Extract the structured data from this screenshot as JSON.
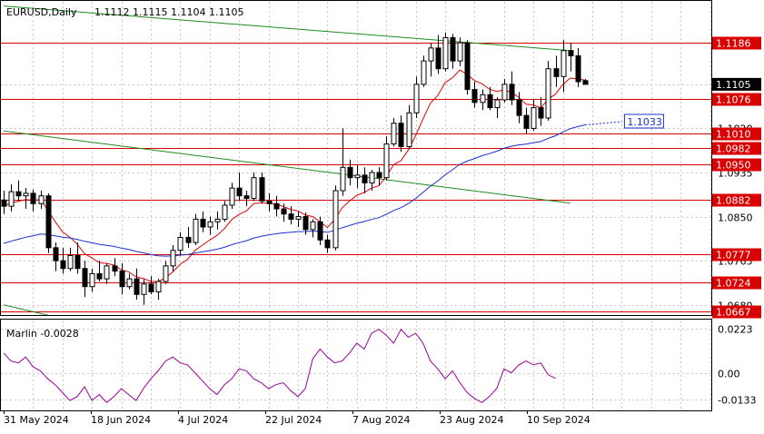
{
  "header": {
    "symbol": "EURUSD,Daily",
    "ohlc": "1.1112 1.1115 1.1104 1.1105"
  },
  "indicator": {
    "label": "Marlin -0.0028"
  },
  "colors": {
    "background": "#ffffff",
    "grid": "#c8c8c8",
    "candle": "#000000",
    "level_line": "#d80000",
    "trend_line": "#1f8a1f",
    "ma_fast": "#e00000",
    "ma_slow": "#1a2fd0",
    "oscillator": "#990099",
    "current_price_bg": "#000000",
    "ma_label_border": "#1a2fd0"
  },
  "chart_data": {
    "type": "candlestick",
    "symbol": "EURUSD",
    "timeframe": "Daily",
    "last_ohlc": {
      "open": 1.1112,
      "high": 1.1115,
      "low": 1.1104,
      "close": 1.1105
    },
    "price_axis": {
      "range": [
        1.0662,
        1.1222
      ],
      "ticks": [
        1.1105,
        1.102,
        1.0935,
        1.085,
        1.0765,
        1.068
      ]
    },
    "time_axis": {
      "labels": [
        "31 May 2024",
        "18 Jun 2024",
        "4 Jul 2024",
        "22 Jul 2024",
        "7 Aug 2024",
        "23 Aug 2024",
        "10 Sep 2024"
      ]
    },
    "grid": true,
    "current_price": 1.1105,
    "horizontal_levels": [
      1.1186,
      1.1076,
      1.101,
      1.0982,
      1.095,
      1.0882,
      1.0777,
      1.0724,
      1.0667
    ],
    "ma_slow_label": 1.1033,
    "trend_lines": [
      {
        "name": "upper",
        "points": [
          [
            0,
            1.1256
          ],
          [
            77,
            1.117
          ]
        ]
      },
      {
        "name": "lower",
        "points": [
          [
            0,
            1.1015
          ],
          [
            77,
            1.0876
          ]
        ]
      },
      {
        "name": "bottom",
        "points": [
          [
            0,
            1.068
          ],
          [
            6,
            1.066
          ]
        ]
      }
    ],
    "candles": [
      [
        1.0882,
        1.09,
        1.0855,
        1.087
      ],
      [
        1.087,
        1.0912,
        1.086,
        1.0898
      ],
      [
        1.0898,
        1.092,
        1.088,
        1.089
      ],
      [
        1.089,
        1.0905,
        1.0865,
        1.0895
      ],
      [
        1.0895,
        1.0902,
        1.086,
        1.0875
      ],
      [
        1.0875,
        1.09,
        1.0865,
        1.089
      ],
      [
        1.089,
        1.0895,
        1.078,
        1.079
      ],
      [
        1.079,
        1.08,
        1.0745,
        1.0765
      ],
      [
        1.0765,
        1.079,
        1.074,
        1.075
      ],
      [
        1.075,
        1.079,
        1.0745,
        1.0775
      ],
      [
        1.0775,
        1.08,
        1.074,
        1.075
      ],
      [
        1.075,
        1.0765,
        1.0695,
        1.0715
      ],
      [
        1.0715,
        1.075,
        1.0705,
        1.074
      ],
      [
        1.074,
        1.0765,
        1.0725,
        1.073
      ],
      [
        1.073,
        1.076,
        1.072,
        1.0755
      ],
      [
        1.0755,
        1.077,
        1.0735,
        1.0745
      ],
      [
        1.0745,
        1.076,
        1.07,
        1.0715
      ],
      [
        1.0715,
        1.074,
        1.071,
        1.073
      ],
      [
        1.073,
        1.075,
        1.069,
        1.07
      ],
      [
        1.07,
        1.073,
        1.068,
        1.072
      ],
      [
        1.072,
        1.0735,
        1.07,
        1.0705
      ],
      [
        1.0705,
        1.073,
        1.069,
        1.0725
      ],
      [
        1.0725,
        1.0765,
        1.072,
        1.0755
      ],
      [
        1.0755,
        1.0795,
        1.0745,
        1.0785
      ],
      [
        1.0785,
        1.082,
        1.0775,
        1.081
      ],
      [
        1.081,
        1.083,
        1.079,
        1.08
      ],
      [
        1.08,
        1.0855,
        1.0795,
        1.0845
      ],
      [
        1.0845,
        1.086,
        1.082,
        1.083
      ],
      [
        1.083,
        1.085,
        1.0815,
        1.084
      ],
      [
        1.084,
        1.086,
        1.0825,
        1.0845
      ],
      [
        1.0845,
        1.088,
        1.084,
        1.0872
      ],
      [
        1.0872,
        1.0915,
        1.0865,
        1.0905
      ],
      [
        1.0905,
        1.0935,
        1.088,
        1.089
      ],
      [
        1.089,
        1.09,
        1.087,
        1.0885
      ],
      [
        1.0885,
        1.0935,
        1.088,
        1.0925
      ],
      [
        1.0925,
        1.0935,
        1.0875,
        1.088
      ],
      [
        1.088,
        1.0895,
        1.086,
        1.0875
      ],
      [
        1.0875,
        1.089,
        1.085,
        1.0865
      ],
      [
        1.0865,
        1.0875,
        1.084,
        1.0855
      ],
      [
        1.0855,
        1.087,
        1.0835,
        1.0845
      ],
      [
        1.0845,
        1.086,
        1.083,
        1.085
      ],
      [
        1.085,
        1.0858,
        1.0815,
        1.0825
      ],
      [
        1.0825,
        1.0845,
        1.081,
        1.084
      ],
      [
        1.084,
        1.085,
        1.0795,
        1.0805
      ],
      [
        1.0805,
        1.0815,
        1.078,
        1.079
      ],
      [
        1.079,
        1.091,
        1.0785,
        1.09
      ],
      [
        1.09,
        1.102,
        1.089,
        1.0945
      ],
      [
        1.0945,
        1.096,
        1.091,
        1.0925
      ],
      [
        1.0925,
        1.095,
        1.0905,
        1.093
      ],
      [
        1.093,
        1.0945,
        1.0895,
        1.0915
      ],
      [
        1.0915,
        1.094,
        1.09,
        1.0935
      ],
      [
        1.0935,
        1.0945,
        1.091,
        1.0925
      ],
      [
        1.0925,
        1.1005,
        1.092,
        1.099
      ],
      [
        1.099,
        1.104,
        1.0985,
        1.103
      ],
      [
        1.103,
        1.1045,
        1.0975,
        1.0985
      ],
      [
        1.0985,
        1.1065,
        1.098,
        1.105
      ],
      [
        1.105,
        1.112,
        1.104,
        1.1105
      ],
      [
        1.1105,
        1.116,
        1.11,
        1.115
      ],
      [
        1.115,
        1.1185,
        1.112,
        1.1175
      ],
      [
        1.1175,
        1.12,
        1.1125,
        1.1135
      ],
      [
        1.1135,
        1.1205,
        1.113,
        1.1195
      ],
      [
        1.1195,
        1.1202,
        1.1135,
        1.115
      ],
      [
        1.115,
        1.1195,
        1.114,
        1.1185
      ],
      [
        1.1185,
        1.119,
        1.1085,
        1.1095
      ],
      [
        1.1095,
        1.111,
        1.106,
        1.107
      ],
      [
        1.107,
        1.1095,
        1.1055,
        1.1085
      ],
      [
        1.1085,
        1.11,
        1.1055,
        1.106
      ],
      [
        1.106,
        1.108,
        1.104,
        1.1075
      ],
      [
        1.1075,
        1.1115,
        1.107,
        1.1105
      ],
      [
        1.1105,
        1.113,
        1.1065,
        1.1075
      ],
      [
        1.1075,
        1.109,
        1.103,
        1.1045
      ],
      [
        1.1045,
        1.106,
        1.101,
        1.102
      ],
      [
        1.102,
        1.1075,
        1.1015,
        1.106
      ],
      [
        1.106,
        1.108,
        1.1025,
        1.104
      ],
      [
        1.104,
        1.115,
        1.1035,
        1.1135
      ],
      [
        1.1135,
        1.116,
        1.11,
        1.112
      ],
      [
        1.112,
        1.119,
        1.109,
        1.117
      ],
      [
        1.117,
        1.1185,
        1.113,
        1.116
      ],
      [
        1.116,
        1.1175,
        1.11,
        1.111
      ],
      [
        1.1112,
        1.1115,
        1.1104,
        1.1105
      ]
    ],
    "oscillator": {
      "name": "Marlin",
      "last_value": -0.0028,
      "range": [
        -0.019,
        0.026
      ],
      "ticks": [
        0.0223,
        0.0,
        -0.0133
      ],
      "values": [
        0.01,
        0.006,
        0.005,
        0.008,
        0.003,
        0.001,
        -0.003,
        -0.006,
        -0.01,
        -0.014,
        -0.012,
        -0.007,
        -0.014,
        -0.011,
        -0.015,
        -0.012,
        -0.008,
        -0.011,
        -0.014,
        -0.008,
        -0.003,
        0.001,
        0.006,
        0.008,
        0.005,
        0.004,
        0.0,
        -0.004,
        -0.008,
        -0.011,
        -0.006,
        -0.003,
        0.002,
        0.001,
        -0.003,
        -0.005,
        -0.008,
        -0.006,
        -0.005,
        -0.009,
        -0.012,
        -0.008,
        0.007,
        0.012,
        0.008,
        0.005,
        0.006,
        0.01,
        0.015,
        0.012,
        0.02,
        0.022,
        0.019,
        0.015,
        0.022,
        0.018,
        0.02,
        0.015,
        0.006,
        0.002,
        -0.003,
        0.001,
        -0.005,
        -0.01,
        -0.013,
        -0.015,
        -0.012,
        -0.008,
        0.002,
        0.0,
        0.004,
        0.006,
        0.004,
        0.005,
        -0.001,
        -0.0028
      ]
    }
  }
}
